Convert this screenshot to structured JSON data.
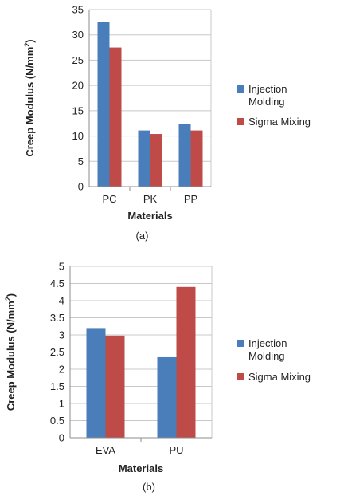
{
  "colors": {
    "injection": "#4a7ebb",
    "sigma": "#be4b48"
  },
  "chart_data": [
    {
      "type": "bar",
      "categories": [
        "PC",
        "PK",
        "PP"
      ],
      "series": [
        {
          "name": "Injection Molding",
          "values": [
            32.5,
            11.1,
            12.3
          ]
        },
        {
          "name": "Sigma Mixing",
          "values": [
            27.5,
            10.4,
            11.1
          ]
        }
      ],
      "title": "",
      "xlabel": "Materials",
      "ylabel_main": "Creep Modulus (N/mm",
      "ylabel_sup": "2",
      "ylabel_close": ")",
      "ylim": [
        0,
        35
      ],
      "ytick_step": 5,
      "yticks": [
        "0",
        "5",
        "10",
        "15",
        "20",
        "25",
        "30",
        "35"
      ],
      "grid": "y-major",
      "legend": "right",
      "caption": "(a)"
    },
    {
      "type": "bar",
      "categories": [
        "EVA",
        "PU"
      ],
      "series": [
        {
          "name": "Injection Molding",
          "values": [
            3.2,
            2.35
          ]
        },
        {
          "name": "Sigma Mixing",
          "values": [
            2.98,
            4.4
          ]
        }
      ],
      "title": "",
      "xlabel": "Materials",
      "ylabel_main": "Creep Modulus (N/mm",
      "ylabel_sup": "2",
      "ylabel_close": ")",
      "ylim": [
        0,
        5
      ],
      "ytick_step": 0.5,
      "yticks": [
        "0",
        "0.5",
        "1",
        "1.5",
        "2",
        "2.5",
        "3",
        "3.5",
        "4",
        "4.5",
        "5"
      ],
      "grid": "y-major",
      "legend": "right",
      "caption": "(b)"
    }
  ]
}
